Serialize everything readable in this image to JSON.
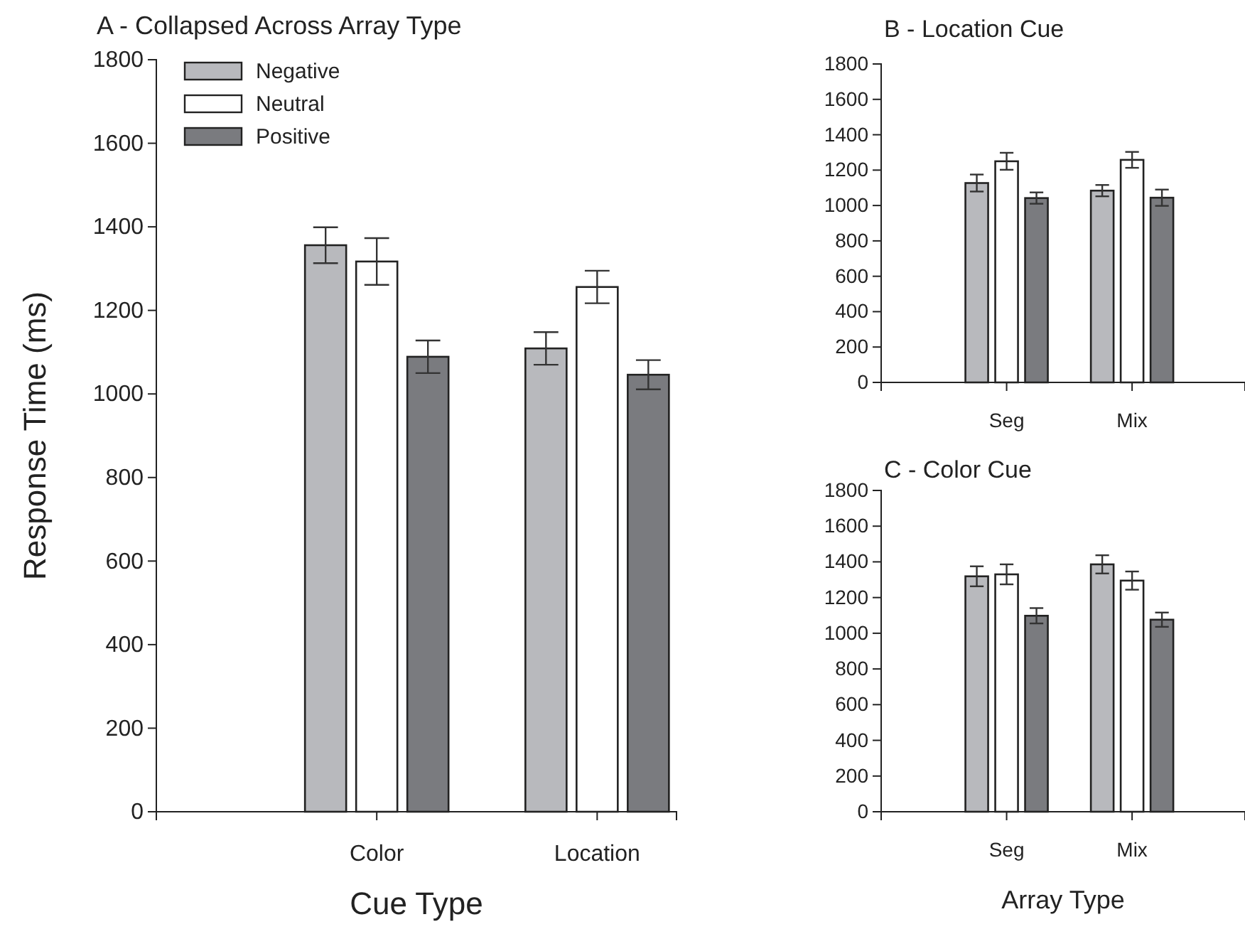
{
  "chart_data": [
    {
      "type": "bar",
      "title": "A - Collapsed Across Array Type",
      "xlabel": "Cue Type",
      "ylabel": "Response Time (ms)",
      "categories": [
        "Color",
        "Location"
      ],
      "ylim": [
        0,
        1800
      ],
      "yticks": [
        0,
        200,
        400,
        600,
        800,
        1000,
        1200,
        1400,
        1600,
        1800
      ],
      "legend": "top left",
      "series": [
        {
          "name": "Negative",
          "color": "#b8b9bd",
          "values": [
            1356,
            1109
          ],
          "errors": [
            43,
            39
          ]
        },
        {
          "name": "Neutral",
          "color": "#ffffff",
          "values": [
            1317,
            1256
          ],
          "errors": [
            56,
            39
          ]
        },
        {
          "name": "Positive",
          "color": "#7a7b7f",
          "values": [
            1089,
            1046
          ],
          "errors": [
            39,
            35
          ]
        }
      ]
    },
    {
      "type": "bar",
      "title": "B - Location Cue",
      "categories": [
        "Seg",
        "Mix"
      ],
      "ylim": [
        0,
        1800
      ],
      "yticks": [
        0,
        200,
        400,
        600,
        800,
        1000,
        1200,
        1400,
        1600,
        1800
      ],
      "series": [
        {
          "color": "#b8b9bd",
          "values": [
            1127,
            1084
          ],
          "errors": [
            48,
            32
          ]
        },
        {
          "color": "#ffffff",
          "values": [
            1250,
            1258
          ],
          "errors": [
            48,
            45
          ]
        },
        {
          "color": "#7a7b7f",
          "values": [
            1042,
            1044
          ],
          "errors": [
            32,
            46
          ]
        }
      ]
    },
    {
      "type": "bar",
      "title": "C - Color Cue",
      "xlabel": "Array Type",
      "categories": [
        "Seg",
        "Mix"
      ],
      "ylim": [
        0,
        1800
      ],
      "yticks": [
        0,
        200,
        400,
        600,
        800,
        1000,
        1200,
        1400,
        1600,
        1800
      ],
      "series": [
        {
          "color": "#b8b9bd",
          "values": [
            1319,
            1386
          ],
          "errors": [
            56,
            51
          ]
        },
        {
          "color": "#ffffff",
          "values": [
            1330,
            1295
          ],
          "errors": [
            56,
            51
          ]
        },
        {
          "color": "#7a7b7f",
          "values": [
            1098,
            1076
          ],
          "errors": [
            43,
            40
          ]
        }
      ]
    }
  ]
}
